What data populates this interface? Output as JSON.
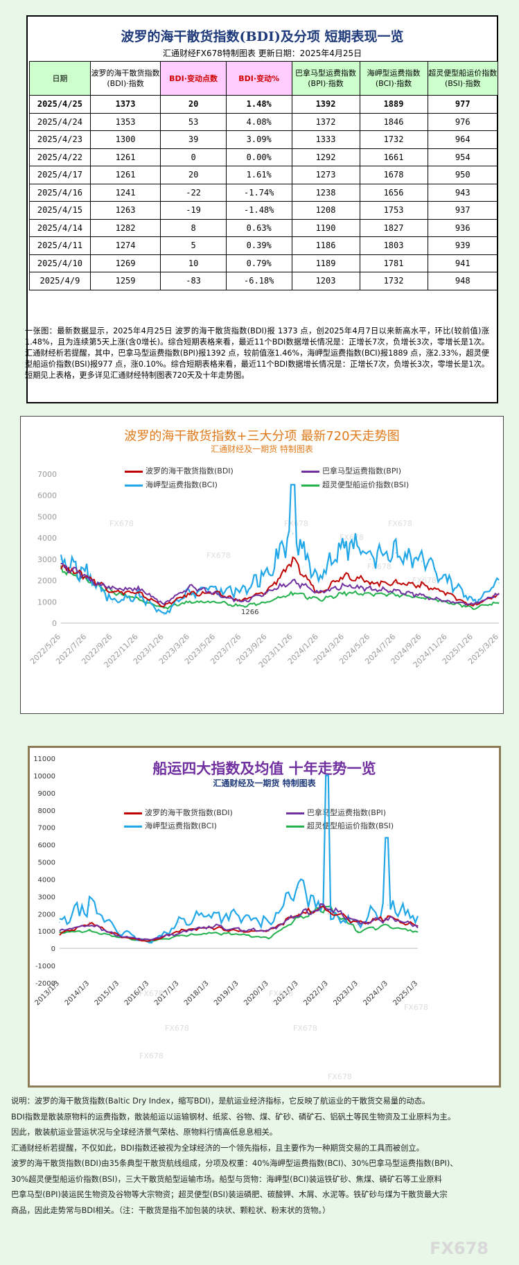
{
  "top": {
    "title": "波罗的海干散货指数(BDI)及分项  短期表现一览",
    "subtitle": "汇通财经FX678特制图表      更新日期：2025年4月25日",
    "headers": [
      "日期",
      "波罗的海干散货指数(BDI)·指数",
      "BDI·变动点数",
      "BDI·变动%",
      "巴拿马型运费指数(BPI)·指数",
      "海岬型运费指数(BCI)·指数",
      "超灵便型船运价指数(BSI)·指数"
    ],
    "rows": [
      [
        "2025/4/25",
        "1373",
        "20",
        "1.48%",
        "1392",
        "1889",
        "977"
      ],
      [
        "2025/4/24",
        "1353",
        "53",
        "4.08%",
        "1372",
        "1846",
        "976"
      ],
      [
        "2025/4/23",
        "1300",
        "39",
        "3.09%",
        "1333",
        "1732",
        "964"
      ],
      [
        "2025/4/22",
        "1261",
        "0",
        "0.00%",
        "1292",
        "1661",
        "954"
      ],
      [
        "2025/4/17",
        "1261",
        "20",
        "1.61%",
        "1273",
        "1678",
        "950"
      ],
      [
        "2025/4/16",
        "1241",
        "-22",
        "-1.74%",
        "1238",
        "1656",
        "943"
      ],
      [
        "2025/4/15",
        "1263",
        "-19",
        "-1.48%",
        "1208",
        "1753",
        "937"
      ],
      [
        "2025/4/14",
        "1282",
        "8",
        "0.63%",
        "1190",
        "1827",
        "936"
      ],
      [
        "2025/4/11",
        "1274",
        "5",
        "0.39%",
        "1186",
        "1803",
        "939"
      ],
      [
        "2025/4/10",
        "1269",
        "10",
        "0.79%",
        "1189",
        "1781",
        "941"
      ],
      [
        "2025/4/9",
        "1259",
        "-83",
        "-6.18%",
        "1203",
        "1732",
        "948"
      ]
    ],
    "note": "一张图：最新数据显示，2025年4月25日 波罗的海干散货指数(BDI)报 1373 点，创2025年4月7日以来新高水平，环比(较前值)涨1.48%，且为连续第5天上涨(含0增长)。综合短期表格来看，最近11个BDI数据增长情况是：正增长7次，负增长3次，零增长是1次。汇通财经析若提醒，其中，巴拿马型运费指数(BPI)报1392 点，较前值涨1.46%，海岬型运费指数(BCI)报1889 点，涨2.33%，超灵便型船运价指数(BSI)报977 点，涨0.10%。综合短期表格来看，最近11个BDI数据增长情况是：正增长7次，负增长3次，零增长是1次。短期见上表格，更多详见汇通财经特制图表720天及十年走势图。"
  },
  "colors": {
    "bdi": "#c00000",
    "bpi": "#7030a0",
    "bci": "#21a7e8",
    "bsi": "#22b14c"
  },
  "chart1": {
    "title": "波罗的海干散货指数+三大分项  最新720天走势图",
    "subtitle": "汇通财经及一期货  特制图表",
    "legend": [
      "波罗的海干散货指数(BDI)",
      "巴拿马型运费指数(BPI)",
      "海岬型运费指数(BCI)",
      "超灵便型船运价指数(BSI)"
    ],
    "watermark": "FX678",
    "annotation": "1266"
  },
  "chart2": {
    "title": "船运四大指数及均值 十年走势一览",
    "subtitle": "汇通财经及一期货 特制图表",
    "legend": [
      "波罗的海干散货指数(BDI)",
      "巴拿马型运费指数(BPI)",
      "海岬型运费指数(BCI)",
      "超灵便型船运价指数(BSI)"
    ],
    "watermark": "FX678"
  },
  "chart_data": [
    {
      "type": "line",
      "title": "波罗的海干散货指数+三大分项  最新720天走势图",
      "subtitle": "汇通财经及一期货  特制图表",
      "x": [
        "2022/5/26",
        "2022/7/26",
        "2022/9/26",
        "2022/11/26",
        "2023/1/26",
        "2023/3/26",
        "2023/5/26",
        "2023/7/26",
        "2023/9/26",
        "2023/11/26",
        "2024/1/26",
        "2024/3/26",
        "2024/5/26",
        "2024/7/26",
        "2024/9/26",
        "2024/11/26",
        "2025/1/26",
        "2025/3/26"
      ],
      "ylim": [
        0,
        7000
      ],
      "yticks": [
        0,
        1000,
        2000,
        3000,
        4000,
        5000,
        6000,
        7000
      ],
      "grid": false,
      "legend_position": "top",
      "series": [
        {
          "name": "波罗的海干散货指数(BDI)",
          "values": [
            2700,
            2200,
            1500,
            1400,
            800,
            1400,
            1400,
            1050,
            1500,
            2900,
            1400,
            2300,
            1900,
            1900,
            1800,
            1400,
            800,
            1373
          ]
        },
        {
          "name": "巴拿马型运费指数(BPI)",
          "values": [
            2800,
            2100,
            1600,
            1600,
            900,
            1700,
            1400,
            1000,
            1400,
            2000,
            1400,
            1800,
            1600,
            1500,
            1300,
            1000,
            900,
            1392
          ]
        },
        {
          "name": "海岬型运费指数(BCI)",
          "values": [
            3000,
            2300,
            1000,
            1300,
            400,
            1500,
            1600,
            1500,
            2400,
            4200,
            2100,
            3800,
            3000,
            3300,
            2900,
            2100,
            1000,
            1889
          ]
        },
        {
          "name": "超灵便型船运价指数(BSI)",
          "values": [
            2600,
            2000,
            1500,
            1100,
            700,
            1000,
            1000,
            800,
            1000,
            1400,
            1100,
            1400,
            1400,
            1300,
            1200,
            1000,
            700,
            977
          ]
        }
      ]
    },
    {
      "type": "line",
      "title": "船运四大指数及均值 十年走势一览",
      "subtitle": "汇通财经及一期货 特制图表",
      "x": [
        "2013/1/3",
        "2014/1/3",
        "2015/1/3",
        "2016/1/3",
        "2017/1/3",
        "2018/1/3",
        "2019/1/3",
        "2020/1/3",
        "2021/1/3",
        "2022/1/3",
        "2023/1/3",
        "2024/1/3",
        "2025/1/3"
      ],
      "ylim": [
        -2000,
        11000
      ],
      "yticks": [
        -2000,
        -1000,
        0,
        1000,
        2000,
        3000,
        4000,
        5000,
        6000,
        7000,
        8000,
        9000,
        10000,
        11000
      ],
      "grid": false,
      "legend_position": "top",
      "series": [
        {
          "name": "波罗的海干散货指数(BDI)",
          "values": [
            800,
            1500,
            700,
            400,
            1000,
            1200,
            1000,
            1000,
            2000,
            2300,
            1400,
            1800,
            1300
          ]
        },
        {
          "name": "巴拿马型运费指数(BPI)",
          "values": [
            1000,
            1400,
            700,
            500,
            900,
            1300,
            1100,
            1000,
            2000,
            2400,
            1500,
            1700,
            1300
          ]
        },
        {
          "name": "海岬型运费指数(BCI)",
          "values": [
            1500,
            2500,
            1000,
            300,
            1500,
            2000,
            1800,
            1500,
            3500,
            2000,
            1500,
            2500,
            1800
          ]
        },
        {
          "name": "超灵便型船运价指数(BSI)",
          "values": [
            900,
            1000,
            650,
            400,
            700,
            900,
            800,
            600,
            1800,
            2400,
            1000,
            1300,
            950
          ]
        }
      ]
    }
  ],
  "description": [
    "说明：波罗的海干散货指数(Baltic Dry Index，缩写BDI)，是航运业经济指标，它反映了航运业的干散货交易量的动态。",
    "BDI指数是散装原物料的运费指数，散装船运以运输钢材、纸浆、谷物、煤、矿砂、磷矿石、铝矾土等民生物资及工业原料为主。",
    "因此，散装航运业营运状况与全球经济景气荣枯、原物料行情高低息息相关。",
    "汇通财经析若提醒，不仅如此，BDI指数还被视为全球经济的一个领先指标，且主要作为一种期货交易的工具而被创立。",
    "波罗的海干散货指数(BDI)由35条典型干散货航线组成，分项及权重：40%海岬型运费指数(BCI)、30%巴拿马型运费指数(BPI)、",
    "30%超灵便型船运价指数(BSI)，三大干散货船型运输市场。船型与货物：海岬型(BCI)装运铁矿砂、焦煤、磷矿石等工业原料",
    "巴拿马型(BPI)装运民生物资及谷物等大宗物资；超灵便型(BSI)装运磷肥、碳酸钾、木屑、水泥等。铁矿砂与煤为干散货最大宗",
    "商品，因此走势常与BDI相关。（注：干散货是指不加包装的块状、颗粒状、粉末状的货物。）"
  ],
  "watermark": "FX678"
}
